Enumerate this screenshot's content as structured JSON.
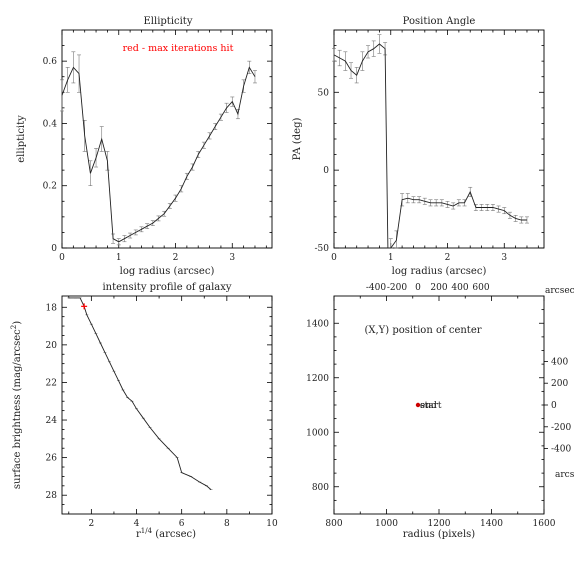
{
  "chart_data": [
    {
      "id": "ellipticity",
      "type": "line",
      "title": "Ellipticity",
      "xlabel": "log radius (arcsec)",
      "ylabel": "ellipticity",
      "xlim": [
        0,
        3.7
      ],
      "ylim": [
        0,
        0.7
      ],
      "xticks": [
        0,
        1,
        2,
        3
      ],
      "yticks": [
        0,
        0.2,
        0.4,
        0.6
      ],
      "annotation": "red - max iterations hit",
      "annotation_color": "#ff0000",
      "series": [
        {
          "x": [
            0.0,
            0.1,
            0.2,
            0.3,
            0.4,
            0.5,
            0.6,
            0.7,
            0.8,
            0.9,
            1.0,
            1.1,
            1.2,
            1.3,
            1.4,
            1.5,
            1.6,
            1.7,
            1.8,
            1.9,
            2.0,
            2.1,
            2.2,
            2.3,
            2.4,
            2.5,
            2.6,
            2.7,
            2.8,
            2.9,
            3.0,
            3.1,
            3.2,
            3.3,
            3.4
          ],
          "y": [
            0.49,
            0.54,
            0.58,
            0.56,
            0.36,
            0.24,
            0.29,
            0.35,
            0.28,
            0.03,
            0.02,
            0.03,
            0.04,
            0.05,
            0.06,
            0.07,
            0.08,
            0.095,
            0.11,
            0.135,
            0.16,
            0.19,
            0.23,
            0.26,
            0.3,
            0.33,
            0.36,
            0.39,
            0.42,
            0.45,
            0.47,
            0.43,
            0.52,
            0.58,
            0.55
          ],
          "err": [
            0.05,
            0.04,
            0.05,
            0.06,
            0.05,
            0.04,
            0.03,
            0.04,
            0.03,
            0.015,
            0.01,
            0.01,
            0.008,
            0.008,
            0.008,
            0.008,
            0.008,
            0.008,
            0.008,
            0.008,
            0.01,
            0.01,
            0.01,
            0.01,
            0.01,
            0.01,
            0.01,
            0.01,
            0.01,
            0.015,
            0.015,
            0.015,
            0.02,
            0.02,
            0.02
          ]
        }
      ]
    },
    {
      "id": "position-angle",
      "type": "line",
      "title": "Position Angle",
      "xlabel": "log radius (arcsec)",
      "ylabel": "PA (deg)",
      "xlim": [
        0,
        3.7
      ],
      "ylim": [
        -50,
        90
      ],
      "xticks": [
        0,
        1,
        2,
        3
      ],
      "yticks": [
        -50,
        0,
        50
      ],
      "series": [
        {
          "x": [
            0.0,
            0.1,
            0.2,
            0.3,
            0.4,
            0.5,
            0.6,
            0.7,
            0.8,
            0.9,
            0.95,
            1.0,
            1.1,
            1.2,
            1.3,
            1.4,
            1.5,
            1.6,
            1.7,
            1.8,
            1.9,
            2.0,
            2.1,
            2.2,
            2.3,
            2.4,
            2.5,
            2.6,
            2.7,
            2.8,
            2.9,
            3.0,
            3.1,
            3.2,
            3.3,
            3.4
          ],
          "y": [
            74,
            72,
            70,
            64,
            61,
            70,
            76,
            78,
            81,
            78,
            -52,
            -52,
            -45,
            -19,
            -18,
            -19,
            -19,
            -20,
            -21,
            -21,
            -21,
            -22,
            -23,
            -21,
            -21,
            -14,
            -24,
            -24,
            -24,
            -24,
            -25,
            -26,
            -29,
            -31,
            -32,
            -32
          ],
          "err": [
            4,
            5,
            6,
            5,
            5,
            6,
            4,
            5,
            6,
            4,
            0,
            8,
            6,
            4,
            3,
            2,
            2,
            2,
            2,
            2,
            2,
            2,
            2,
            2,
            2,
            3,
            2,
            2,
            2,
            2,
            2,
            2,
            2,
            2,
            2,
            2
          ]
        }
      ]
    },
    {
      "id": "intensity-profile",
      "type": "line",
      "title": "intensity profile of galaxy",
      "xlabel": "r^1/4 (arcsec)",
      "ylabel": "surface brightness (mag/arcsec^2)",
      "xlim": [
        0.7,
        10
      ],
      "ylim": [
        29,
        17.4
      ],
      "xticks": [
        2,
        4,
        6,
        8,
        10
      ],
      "yticks": [
        18,
        20,
        22,
        24,
        26,
        28
      ],
      "highlight_color": "#ff0000",
      "highlight_point": [
        1.68,
        17.95
      ],
      "series": [
        {
          "x": [
            1.0,
            1.3,
            1.5,
            1.68,
            1.8,
            2.0,
            2.2,
            2.4,
            2.6,
            2.8,
            3.0,
            3.2,
            3.4,
            3.6,
            3.8,
            4.0,
            4.3,
            4.6,
            5.0,
            5.4,
            5.8,
            6.0,
            6.4,
            6.8,
            7.1,
            7.3
          ],
          "y": [
            17.5,
            17.5,
            17.5,
            17.95,
            18.4,
            18.9,
            19.4,
            19.9,
            20.4,
            20.9,
            21.4,
            21.9,
            22.4,
            22.8,
            23.0,
            23.4,
            23.9,
            24.4,
            25.0,
            25.5,
            26.0,
            26.8,
            27.0,
            27.3,
            27.5,
            27.7
          ]
        }
      ]
    },
    {
      "id": "center-position",
      "type": "scatter",
      "title": "(X,Y) position of center",
      "xlabel": "radius (pixels)",
      "xlim": [
        800,
        1600
      ],
      "ylim": [
        700,
        1500
      ],
      "xticks": [
        800,
        1000,
        1200,
        1400,
        1600
      ],
      "yticks": [
        800,
        1000,
        1200,
        1400
      ],
      "top_axis_label": "arcsec",
      "top_ticks": [
        -400,
        -200,
        0,
        200,
        400,
        600
      ],
      "right_axis_label": "arcsec",
      "right_ticks": [
        400,
        200,
        0,
        -200,
        -400
      ],
      "point": [
        1120,
        1100
      ],
      "point_color": "#cc0000",
      "point_labels": [
        "start",
        "end"
      ]
    }
  ]
}
